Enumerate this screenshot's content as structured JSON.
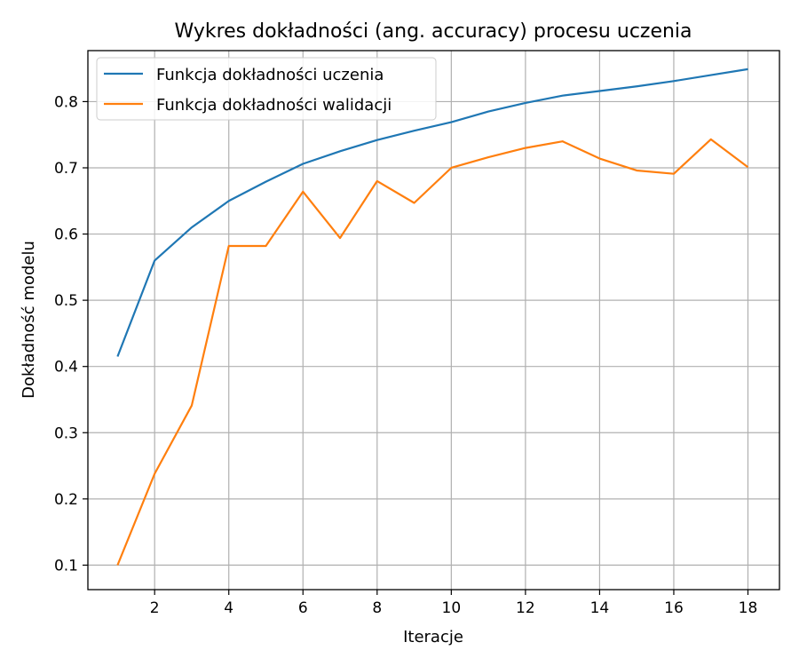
{
  "chart_data": {
    "type": "line",
    "title": "Wykres dokładności (ang. accuracy) procesu uczenia",
    "xlabel": "Iteracje",
    "ylabel": "Dokładność modelu",
    "xlim": [
      0.2,
      18.85
    ],
    "ylim": [
      0.063,
      0.877
    ],
    "xticks": [
      2,
      4,
      6,
      8,
      10,
      12,
      14,
      16,
      18
    ],
    "xtick_labels": [
      "2",
      "4",
      "6",
      "8",
      "10",
      "12",
      "14",
      "16",
      "18"
    ],
    "yticks": [
      0.1,
      0.2,
      0.3,
      0.4,
      0.5,
      0.6,
      0.7,
      0.8
    ],
    "ytick_labels": [
      "0.1",
      "0.2",
      "0.3",
      "0.4",
      "0.5",
      "0.6",
      "0.7",
      "0.8"
    ],
    "grid": true,
    "legend_position": "upper-left",
    "x": [
      1,
      2,
      3,
      4,
      5,
      6,
      7,
      8,
      9,
      10,
      11,
      12,
      13,
      14,
      15,
      16,
      17,
      18
    ],
    "series": [
      {
        "name": "Funkcja dokładności uczenia",
        "color": "#1f77b4",
        "values": [
          0.415,
          0.56,
          0.61,
          0.65,
          0.679,
          0.706,
          0.725,
          0.742,
          0.756,
          0.769,
          0.785,
          0.798,
          0.809,
          0.816,
          0.823,
          0.831,
          0.84,
          0.849
        ]
      },
      {
        "name": "Funkcja dokładności walidacji",
        "color": "#ff7f0e",
        "values": [
          0.1,
          0.238,
          0.341,
          0.582,
          0.582,
          0.664,
          0.594,
          0.68,
          0.647,
          0.7,
          0.716,
          0.73,
          0.74,
          0.714,
          0.696,
          0.691,
          0.743,
          0.701
        ]
      }
    ]
  }
}
